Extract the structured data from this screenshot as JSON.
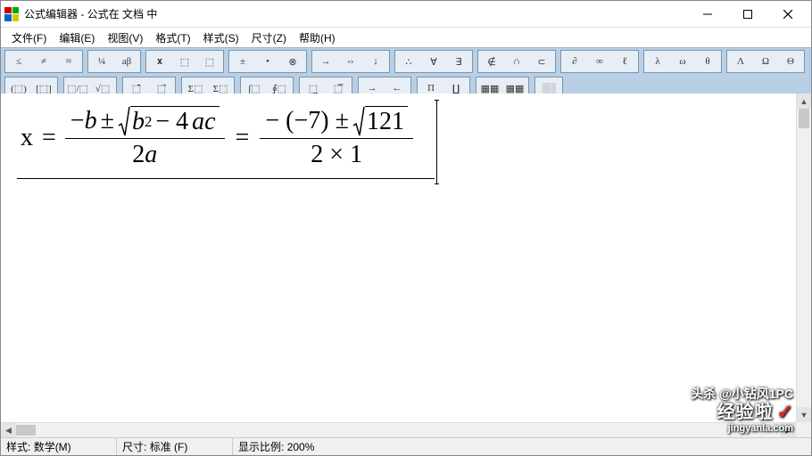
{
  "window": {
    "title": "公式编辑器 - 公式在 文档 中"
  },
  "menus": [
    "文件(F)",
    "编辑(E)",
    "视图(V)",
    "格式(T)",
    "样式(S)",
    "尺寸(Z)",
    "帮助(H)"
  ],
  "toolbar_row1_groups": [
    [
      "≤ ≠ ≈",
      "¼ aβ",
      "𝐱 ⬚ ⬚",
      "± • ⊗",
      "→ ⇔ ↓",
      "∴ ∀ ∃",
      "∉ ∩ ⊂",
      "∂ ∞ ℓ",
      "λ ω θ",
      "Λ Ω Θ"
    ]
  ],
  "toolbar_row2_groups": [
    [
      "(⬚) [⬚]",
      "⬚/⬚ √⬚",
      "⬚̄  ⬚⃗",
      "Σ⬚ Σ⬚",
      "∫⬚ ∮⬚",
      "⬚̲  ⬚̅",
      "→  ←",
      "Π  ∐",
      "▦▦ ▦▦",
      "░░"
    ]
  ],
  "equation": {
    "lhs_var": "x",
    "eq_sign": "=",
    "frac1": {
      "num_prefix": "−",
      "num_var_b": "b",
      "pm": "±",
      "sqrt_b": "b",
      "sqrt_exp": "2",
      "sqrt_minus": "− 4",
      "sqrt_a": "a",
      "sqrt_c": "c",
      "den_two": "2",
      "den_a": "a"
    },
    "mid_eq": "=",
    "frac2": {
      "num_prefix": "− (−7) ±",
      "sqrt_val": "121",
      "den": "2 × 1"
    }
  },
  "status": {
    "style_label": "样式:",
    "style_value": "数学(M)",
    "size_label": "尺寸:",
    "size_value": "标准 (F)",
    "zoom_label": "显示比例:",
    "zoom_value": "200%"
  },
  "watermark": {
    "top": "头杀 @小钻风1PC",
    "brand": "经验啦",
    "site": "jingyanla.com"
  }
}
